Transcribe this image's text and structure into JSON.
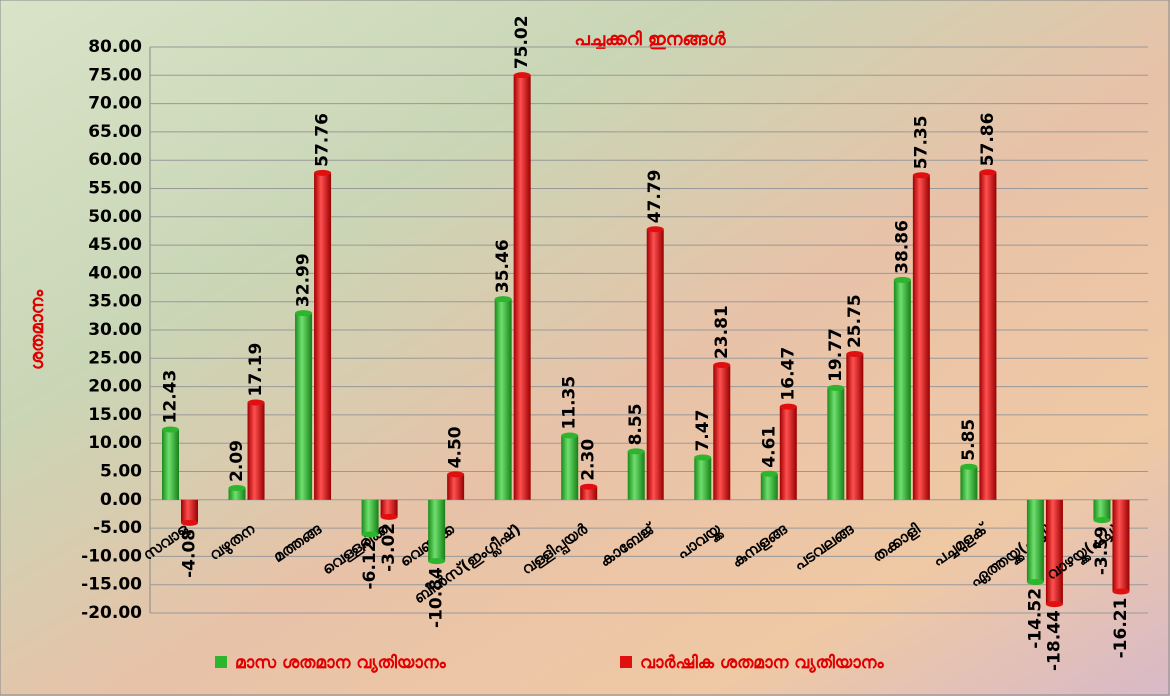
{
  "chart_data": {
    "type": "bar",
    "title": "പച്ചക്കറി ഇനങ്ങൾ",
    "y_label": "ശതമാനം",
    "categories": [
      "സവാള",
      "വഴുതന",
      "മത്തങ്ങ",
      "വെള്ളരിക്ക",
      "വെണ്ടക്ക",
      "ബീൻസ്(ഇംഗ്ലീഷ്)",
      "വള്ളിപ്പയർ",
      "കാബേജ്",
      "പാവയ്ക്ക",
      "കുമ്പളങ്ങ",
      "പടവലങ്ങ",
      "തക്കാളി",
      "പച്ചമുളക്",
      "ഏത്തയ്ക്ക(പച്ച)",
      "വാഴയ്ക്ക(പച്ച)"
    ],
    "series": [
      {
        "name": "മാസ ശതമാന വ്യതിയാനം",
        "color": "#2db52d",
        "values": [
          12.43,
          2.09,
          32.99,
          -6.12,
          -10.84,
          35.46,
          11.35,
          8.55,
          7.47,
          4.61,
          19.77,
          38.86,
          5.85,
          -14.52,
          -3.59
        ],
        "value_labels": [
          "12.43",
          "2.09",
          "32.99",
          "-6.12",
          "-10.84",
          "35.46",
          "11.35",
          "8.55",
          "7.47",
          "4.61",
          "19.77",
          "38.86",
          "5.85",
          "-14.52",
          "-3.59"
        ]
      },
      {
        "name": "വാർഷിക  ശതമാന വ്യതിയാനം",
        "color": "#e01010",
        "values": [
          -4.08,
          17.19,
          57.76,
          -3.02,
          4.5,
          75.02,
          2.3,
          47.79,
          23.81,
          16.47,
          25.75,
          57.35,
          57.86,
          -18.44,
          -16.21
        ],
        "value_labels": [
          "-4.08",
          "17.19",
          "57.76",
          "-3.02",
          "4.50",
          "75.02",
          "2.30",
          "47.79",
          "23.81",
          "16.47",
          "25.75",
          "57.35",
          "57.86",
          "-18.44",
          "-16.21"
        ]
      }
    ],
    "ylim": [
      -20,
      80
    ],
    "yticks": [
      {
        "value": -20,
        "label": "-20.00"
      },
      {
        "value": -15,
        "label": "-15.00"
      },
      {
        "value": -10,
        "label": "-10.00"
      },
      {
        "value": -5,
        "label": "-5.00"
      },
      {
        "value": 0,
        "label": "0.00"
      },
      {
        "value": 5,
        "label": "5.00"
      },
      {
        "value": 10,
        "label": "10.00"
      },
      {
        "value": 15,
        "label": "15.00"
      },
      {
        "value": 20,
        "label": "20.00"
      },
      {
        "value": 25,
        "label": "25.00"
      },
      {
        "value": 30,
        "label": "30.00"
      },
      {
        "value": 35,
        "label": "35.00"
      },
      {
        "value": 40,
        "label": "40.00"
      },
      {
        "value": 45,
        "label": "45.00"
      },
      {
        "value": 50,
        "label": "50.00"
      },
      {
        "value": 55,
        "label": "55.00"
      },
      {
        "value": 60,
        "label": "60.00"
      },
      {
        "value": 65,
        "label": "65.00"
      },
      {
        "value": 70,
        "label": "70.00"
      },
      {
        "value": 75,
        "label": "75.00"
      },
      {
        "value": 80,
        "label": "80.00"
      }
    ],
    "grid": true
  }
}
